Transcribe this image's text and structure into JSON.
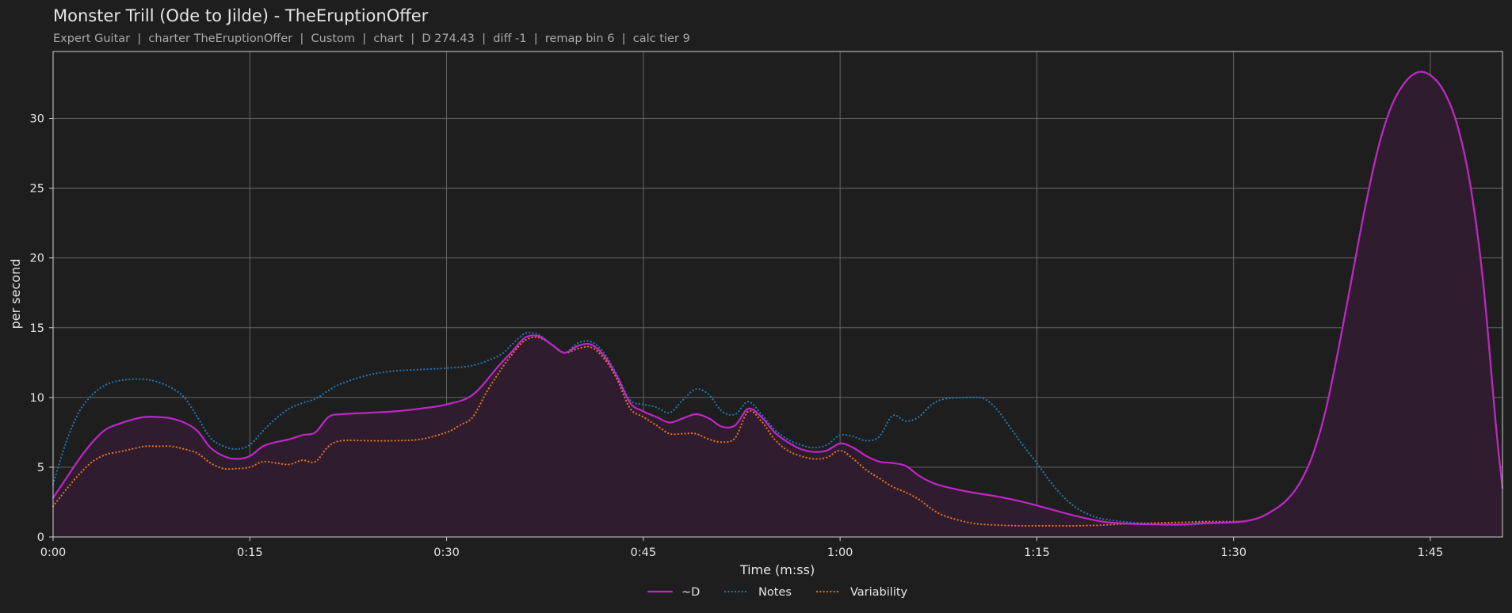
{
  "header": {
    "title": "Monster Trill (Ode to Jilde) - TheEruptionOffer",
    "subtitle": "Expert Guitar  |  charter TheEruptionOffer  |  Custom  |  chart  |  D 274.43  |  diff -1  |  remap bin 6  |  calc tier 9"
  },
  "colors": {
    "background": "#1e1e1e",
    "grid": "#6e6e6e",
    "axis_text": "#e6e6e6",
    "fill": "#2f1c2f"
  },
  "chart_data": {
    "type": "line",
    "xlabel": "Time (m:ss)",
    "ylabel": "per second",
    "xlim": [
      0,
      110.5
    ],
    "ylim": [
      0,
      34.8
    ],
    "grid": true,
    "legend_position": "bottom-center",
    "x_ticks": [
      {
        "value": 0,
        "label": "0:00"
      },
      {
        "value": 15,
        "label": "0:15"
      },
      {
        "value": 30,
        "label": "0:30"
      },
      {
        "value": 45,
        "label": "0:45"
      },
      {
        "value": 60,
        "label": "1:00"
      },
      {
        "value": 75,
        "label": "1:15"
      },
      {
        "value": 90,
        "label": "1:30"
      },
      {
        "value": 105,
        "label": "1:45"
      }
    ],
    "y_ticks": [
      {
        "value": 0,
        "label": "0"
      },
      {
        "value": 5,
        "label": "5"
      },
      {
        "value": 10,
        "label": "10"
      },
      {
        "value": 15,
        "label": "15"
      },
      {
        "value": 20,
        "label": "20"
      },
      {
        "value": 25,
        "label": "25"
      },
      {
        "value": 30,
        "label": "30"
      }
    ],
    "series": [
      {
        "name": "~D",
        "color": "#c026c8",
        "style": "solid",
        "filled": true,
        "points": [
          [
            0,
            2.8
          ],
          [
            1,
            4.2
          ],
          [
            2,
            5.6
          ],
          [
            3,
            6.8
          ],
          [
            4,
            7.7
          ],
          [
            5,
            8.1
          ],
          [
            6,
            8.4
          ],
          [
            7,
            8.6
          ],
          [
            8,
            8.6
          ],
          [
            9,
            8.5
          ],
          [
            10,
            8.2
          ],
          [
            11,
            7.6
          ],
          [
            12,
            6.4
          ],
          [
            13,
            5.8
          ],
          [
            14,
            5.6
          ],
          [
            15,
            5.8
          ],
          [
            16,
            6.5
          ],
          [
            17,
            6.8
          ],
          [
            18,
            7.0
          ],
          [
            19,
            7.3
          ],
          [
            20,
            7.5
          ],
          [
            21,
            8.6
          ],
          [
            22,
            8.8
          ],
          [
            24,
            8.9
          ],
          [
            26,
            9.0
          ],
          [
            28,
            9.2
          ],
          [
            30,
            9.5
          ],
          [
            32,
            10.2
          ],
          [
            34,
            12.3
          ],
          [
            35,
            13.3
          ],
          [
            36,
            14.3
          ],
          [
            37,
            14.4
          ],
          [
            38,
            13.8
          ],
          [
            39,
            13.2
          ],
          [
            40,
            13.7
          ],
          [
            41,
            13.8
          ],
          [
            42,
            13.0
          ],
          [
            43,
            11.5
          ],
          [
            44,
            9.6
          ],
          [
            45,
            9.0
          ],
          [
            46,
            8.6
          ],
          [
            47,
            8.2
          ],
          [
            48,
            8.5
          ],
          [
            49,
            8.8
          ],
          [
            50,
            8.5
          ],
          [
            51,
            7.9
          ],
          [
            52,
            8.0
          ],
          [
            53,
            9.2
          ],
          [
            54,
            8.6
          ],
          [
            55,
            7.5
          ],
          [
            56,
            6.8
          ],
          [
            57,
            6.3
          ],
          [
            58,
            6.1
          ],
          [
            59,
            6.2
          ],
          [
            60,
            6.7
          ],
          [
            61,
            6.4
          ],
          [
            62,
            5.8
          ],
          [
            63,
            5.4
          ],
          [
            64,
            5.3
          ],
          [
            65,
            5.1
          ],
          [
            66,
            4.4
          ],
          [
            67,
            3.9
          ],
          [
            68,
            3.6
          ],
          [
            70,
            3.2
          ],
          [
            72,
            2.9
          ],
          [
            74,
            2.5
          ],
          [
            76,
            2.0
          ],
          [
            78,
            1.5
          ],
          [
            80,
            1.1
          ],
          [
            82,
            0.95
          ],
          [
            84,
            0.9
          ],
          [
            86,
            0.9
          ],
          [
            88,
            1.0
          ],
          [
            90,
            1.05
          ],
          [
            91,
            1.15
          ],
          [
            92,
            1.4
          ],
          [
            93,
            1.9
          ],
          [
            94,
            2.6
          ],
          [
            95,
            3.8
          ],
          [
            96,
            5.8
          ],
          [
            97,
            9.0
          ],
          [
            98,
            13.5
          ],
          [
            99,
            18.5
          ],
          [
            100,
            23.5
          ],
          [
            101,
            27.8
          ],
          [
            102,
            30.8
          ],
          [
            103,
            32.5
          ],
          [
            104,
            33.3
          ],
          [
            105,
            33.1
          ],
          [
            106,
            32.0
          ],
          [
            107,
            29.7
          ],
          [
            108,
            25.5
          ],
          [
            109,
            18.5
          ],
          [
            110,
            8.0
          ],
          [
            110.5,
            3.5
          ]
        ]
      },
      {
        "name": "Notes",
        "color": "#1f77b4",
        "style": "dotted",
        "filled": false,
        "points": [
          [
            0,
            3.8
          ],
          [
            1,
            6.8
          ],
          [
            2,
            9.0
          ],
          [
            3,
            10.2
          ],
          [
            4,
            10.9
          ],
          [
            5,
            11.2
          ],
          [
            6,
            11.3
          ],
          [
            7,
            11.3
          ],
          [
            8,
            11.1
          ],
          [
            9,
            10.7
          ],
          [
            10,
            10.0
          ],
          [
            11,
            8.6
          ],
          [
            12,
            7.1
          ],
          [
            13,
            6.5
          ],
          [
            14,
            6.3
          ],
          [
            15,
            6.6
          ],
          [
            16,
            7.6
          ],
          [
            17,
            8.5
          ],
          [
            18,
            9.2
          ],
          [
            19,
            9.6
          ],
          [
            20,
            9.9
          ],
          [
            21,
            10.5
          ],
          [
            22,
            11.0
          ],
          [
            24,
            11.6
          ],
          [
            26,
            11.9
          ],
          [
            28,
            12.0
          ],
          [
            30,
            12.1
          ],
          [
            32,
            12.3
          ],
          [
            34,
            13.0
          ],
          [
            35,
            13.8
          ],
          [
            36,
            14.6
          ],
          [
            37,
            14.5
          ],
          [
            38,
            13.8
          ],
          [
            39,
            13.2
          ],
          [
            40,
            13.9
          ],
          [
            41,
            14.0
          ],
          [
            42,
            13.2
          ],
          [
            43,
            11.6
          ],
          [
            44,
            9.8
          ],
          [
            45,
            9.5
          ],
          [
            46,
            9.3
          ],
          [
            47,
            8.9
          ],
          [
            48,
            9.8
          ],
          [
            49,
            10.6
          ],
          [
            50,
            10.2
          ],
          [
            51,
            9.0
          ],
          [
            52,
            8.8
          ],
          [
            53,
            9.7
          ],
          [
            54,
            8.8
          ],
          [
            55,
            7.7
          ],
          [
            56,
            7.0
          ],
          [
            57,
            6.6
          ],
          [
            58,
            6.4
          ],
          [
            59,
            6.6
          ],
          [
            60,
            7.3
          ],
          [
            61,
            7.2
          ],
          [
            62,
            6.9
          ],
          [
            63,
            7.2
          ],
          [
            64,
            8.7
          ],
          [
            65,
            8.3
          ],
          [
            66,
            8.6
          ],
          [
            67,
            9.5
          ],
          [
            68,
            9.9
          ],
          [
            70,
            10.0
          ],
          [
            71,
            9.9
          ],
          [
            72,
            9.1
          ],
          [
            73,
            7.8
          ],
          [
            74,
            6.5
          ],
          [
            75,
            5.3
          ],
          [
            76,
            4.0
          ],
          [
            77,
            2.9
          ],
          [
            78,
            2.1
          ],
          [
            79,
            1.6
          ],
          [
            80,
            1.3
          ],
          [
            82,
            1.05
          ],
          [
            84,
            0.9
          ],
          [
            86,
            0.85
          ],
          [
            88,
            0.95
          ],
          [
            90,
            1.05
          ],
          [
            91,
            1.15
          ],
          [
            92,
            1.4
          ],
          [
            93,
            1.9
          ],
          [
            94,
            2.6
          ],
          [
            95,
            3.8
          ],
          [
            96,
            5.8
          ],
          [
            97,
            9.0
          ],
          [
            98,
            13.5
          ],
          [
            99,
            18.5
          ],
          [
            100,
            23.5
          ],
          [
            101,
            27.8
          ],
          [
            102,
            30.8
          ],
          [
            103,
            32.5
          ],
          [
            104,
            33.3
          ],
          [
            105,
            33.1
          ],
          [
            106,
            32.0
          ],
          [
            107,
            29.7
          ],
          [
            108,
            25.5
          ],
          [
            109,
            18.5
          ],
          [
            110,
            8.0
          ],
          [
            110.5,
            3.5
          ]
        ]
      },
      {
        "name": "Variability",
        "color": "#e8751a",
        "style": "dotted",
        "filled": false,
        "points": [
          [
            0,
            2.2
          ],
          [
            1,
            3.4
          ],
          [
            2,
            4.5
          ],
          [
            3,
            5.4
          ],
          [
            4,
            5.9
          ],
          [
            5,
            6.1
          ],
          [
            6,
            6.3
          ],
          [
            7,
            6.5
          ],
          [
            8,
            6.5
          ],
          [
            9,
            6.5
          ],
          [
            10,
            6.3
          ],
          [
            11,
            6.0
          ],
          [
            12,
            5.3
          ],
          [
            13,
            4.9
          ],
          [
            14,
            4.9
          ],
          [
            15,
            5.0
          ],
          [
            16,
            5.4
          ],
          [
            17,
            5.3
          ],
          [
            18,
            5.2
          ],
          [
            19,
            5.5
          ],
          [
            20,
            5.4
          ],
          [
            21,
            6.5
          ],
          [
            22,
            6.9
          ],
          [
            24,
            6.9
          ],
          [
            26,
            6.9
          ],
          [
            28,
            7.0
          ],
          [
            30,
            7.5
          ],
          [
            31,
            8.0
          ],
          [
            32,
            8.6
          ],
          [
            33,
            10.3
          ],
          [
            34,
            11.8
          ],
          [
            35,
            13.1
          ],
          [
            36,
            14.1
          ],
          [
            37,
            14.3
          ],
          [
            38,
            13.8
          ],
          [
            39,
            13.2
          ],
          [
            40,
            13.5
          ],
          [
            41,
            13.6
          ],
          [
            42,
            12.8
          ],
          [
            43,
            11.3
          ],
          [
            44,
            9.2
          ],
          [
            45,
            8.6
          ],
          [
            46,
            8.0
          ],
          [
            47,
            7.4
          ],
          [
            48,
            7.4
          ],
          [
            49,
            7.4
          ],
          [
            50,
            7.0
          ],
          [
            51,
            6.8
          ],
          [
            52,
            7.1
          ],
          [
            53,
            9.0
          ],
          [
            54,
            8.3
          ],
          [
            55,
            7.0
          ],
          [
            56,
            6.2
          ],
          [
            57,
            5.8
          ],
          [
            58,
            5.6
          ],
          [
            59,
            5.7
          ],
          [
            60,
            6.2
          ],
          [
            61,
            5.6
          ],
          [
            62,
            4.8
          ],
          [
            63,
            4.2
          ],
          [
            64,
            3.6
          ],
          [
            65,
            3.2
          ],
          [
            66,
            2.7
          ],
          [
            67,
            2.0
          ],
          [
            68,
            1.5
          ],
          [
            70,
            1.0
          ],
          [
            72,
            0.85
          ],
          [
            74,
            0.8
          ],
          [
            76,
            0.8
          ],
          [
            78,
            0.8
          ],
          [
            80,
            0.85
          ],
          [
            82,
            0.95
          ],
          [
            84,
            1.0
          ],
          [
            86,
            1.05
          ],
          [
            88,
            1.1
          ],
          [
            90,
            1.1
          ],
          [
            91,
            1.15
          ],
          [
            92,
            1.4
          ],
          [
            93,
            1.9
          ],
          [
            94,
            2.6
          ],
          [
            95,
            3.8
          ],
          [
            96,
            5.8
          ],
          [
            97,
            9.0
          ],
          [
            98,
            13.5
          ],
          [
            99,
            18.5
          ],
          [
            100,
            23.5
          ],
          [
            101,
            27.8
          ],
          [
            102,
            30.8
          ],
          [
            103,
            32.5
          ],
          [
            104,
            33.3
          ],
          [
            105,
            33.1
          ],
          [
            106,
            32.0
          ],
          [
            107,
            29.7
          ],
          [
            108,
            25.5
          ],
          [
            109,
            18.5
          ],
          [
            110,
            8.0
          ],
          [
            110.5,
            3.5
          ]
        ]
      }
    ]
  }
}
